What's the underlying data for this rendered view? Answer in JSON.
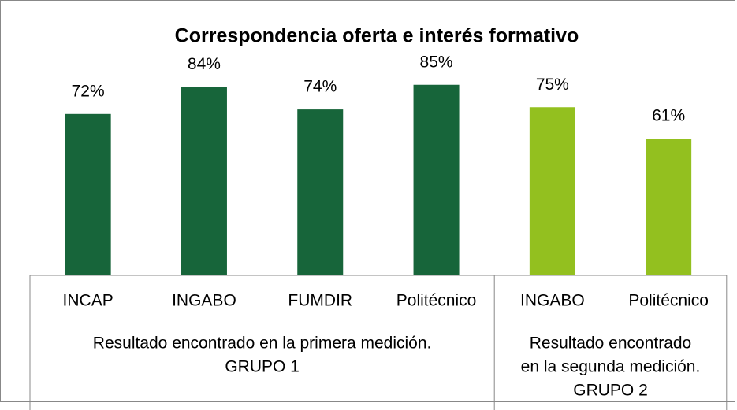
{
  "chart_data": {
    "type": "bar",
    "title": "Correspondencia oferta e interés formativo",
    "groups": [
      {
        "label": [
          "Resultado encontrado en la primera medición.",
          "GRUPO 1"
        ],
        "color": "#17653a",
        "categories": [
          "INCAP",
          "INGABO",
          "FUMDIR",
          "Politécnico"
        ],
        "values": [
          72,
          84,
          74,
          85
        ],
        "value_labels": [
          "72%",
          "84%",
          "74%",
          "85%"
        ]
      },
      {
        "label": [
          "Resultado encontrado",
          "en la segunda medición.",
          "GRUPO 2"
        ],
        "color": "#93c01f",
        "categories": [
          "INGABO",
          "Politécnico"
        ],
        "values": [
          75,
          61
        ],
        "value_labels": [
          "75%",
          "61%"
        ]
      }
    ]
  }
}
